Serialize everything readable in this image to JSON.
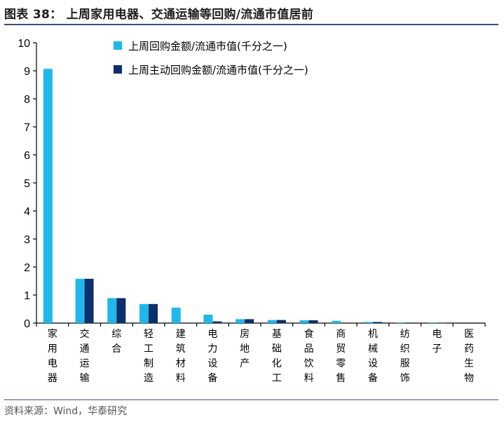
{
  "header": {
    "title": "图表 38：  上周家用电器、交通运输等回购/流通市值居前"
  },
  "footer": {
    "source": "资料来源：Wind，华泰研究"
  },
  "colors": {
    "series1": "#1fb8ea",
    "series2": "#0d2f6b",
    "rule": "#3a4f7a"
  },
  "chart_data": {
    "type": "bar",
    "ylim": [
      0,
      10
    ],
    "yticks": [
      0,
      1,
      2,
      3,
      4,
      5,
      6,
      7,
      8,
      9,
      10
    ],
    "legend_position": "top-center",
    "grid": false,
    "categories": [
      "家用电器",
      "交通运输",
      "综合",
      "轻工制造",
      "建筑材料",
      "电力设备",
      "房地产",
      "基础化工",
      "食品饮料",
      "商贸零售",
      "机械设备",
      "纺织服饰",
      "电子",
      "医药生物"
    ],
    "series": [
      {
        "name": "上周回购金额/流通市值(千分之一)",
        "values": [
          9.07,
          1.58,
          0.89,
          0.68,
          0.55,
          0.3,
          0.14,
          0.11,
          0.1,
          0.08,
          0.04,
          0.02,
          0.02,
          0.0
        ]
      },
      {
        "name": "上周主动回购金额/流通市值(千分之一)",
        "values": [
          0.0,
          1.58,
          0.89,
          0.68,
          0.0,
          0.06,
          0.14,
          0.11,
          0.1,
          0.0,
          0.04,
          0.0,
          0.01,
          0.0
        ]
      }
    ]
  }
}
